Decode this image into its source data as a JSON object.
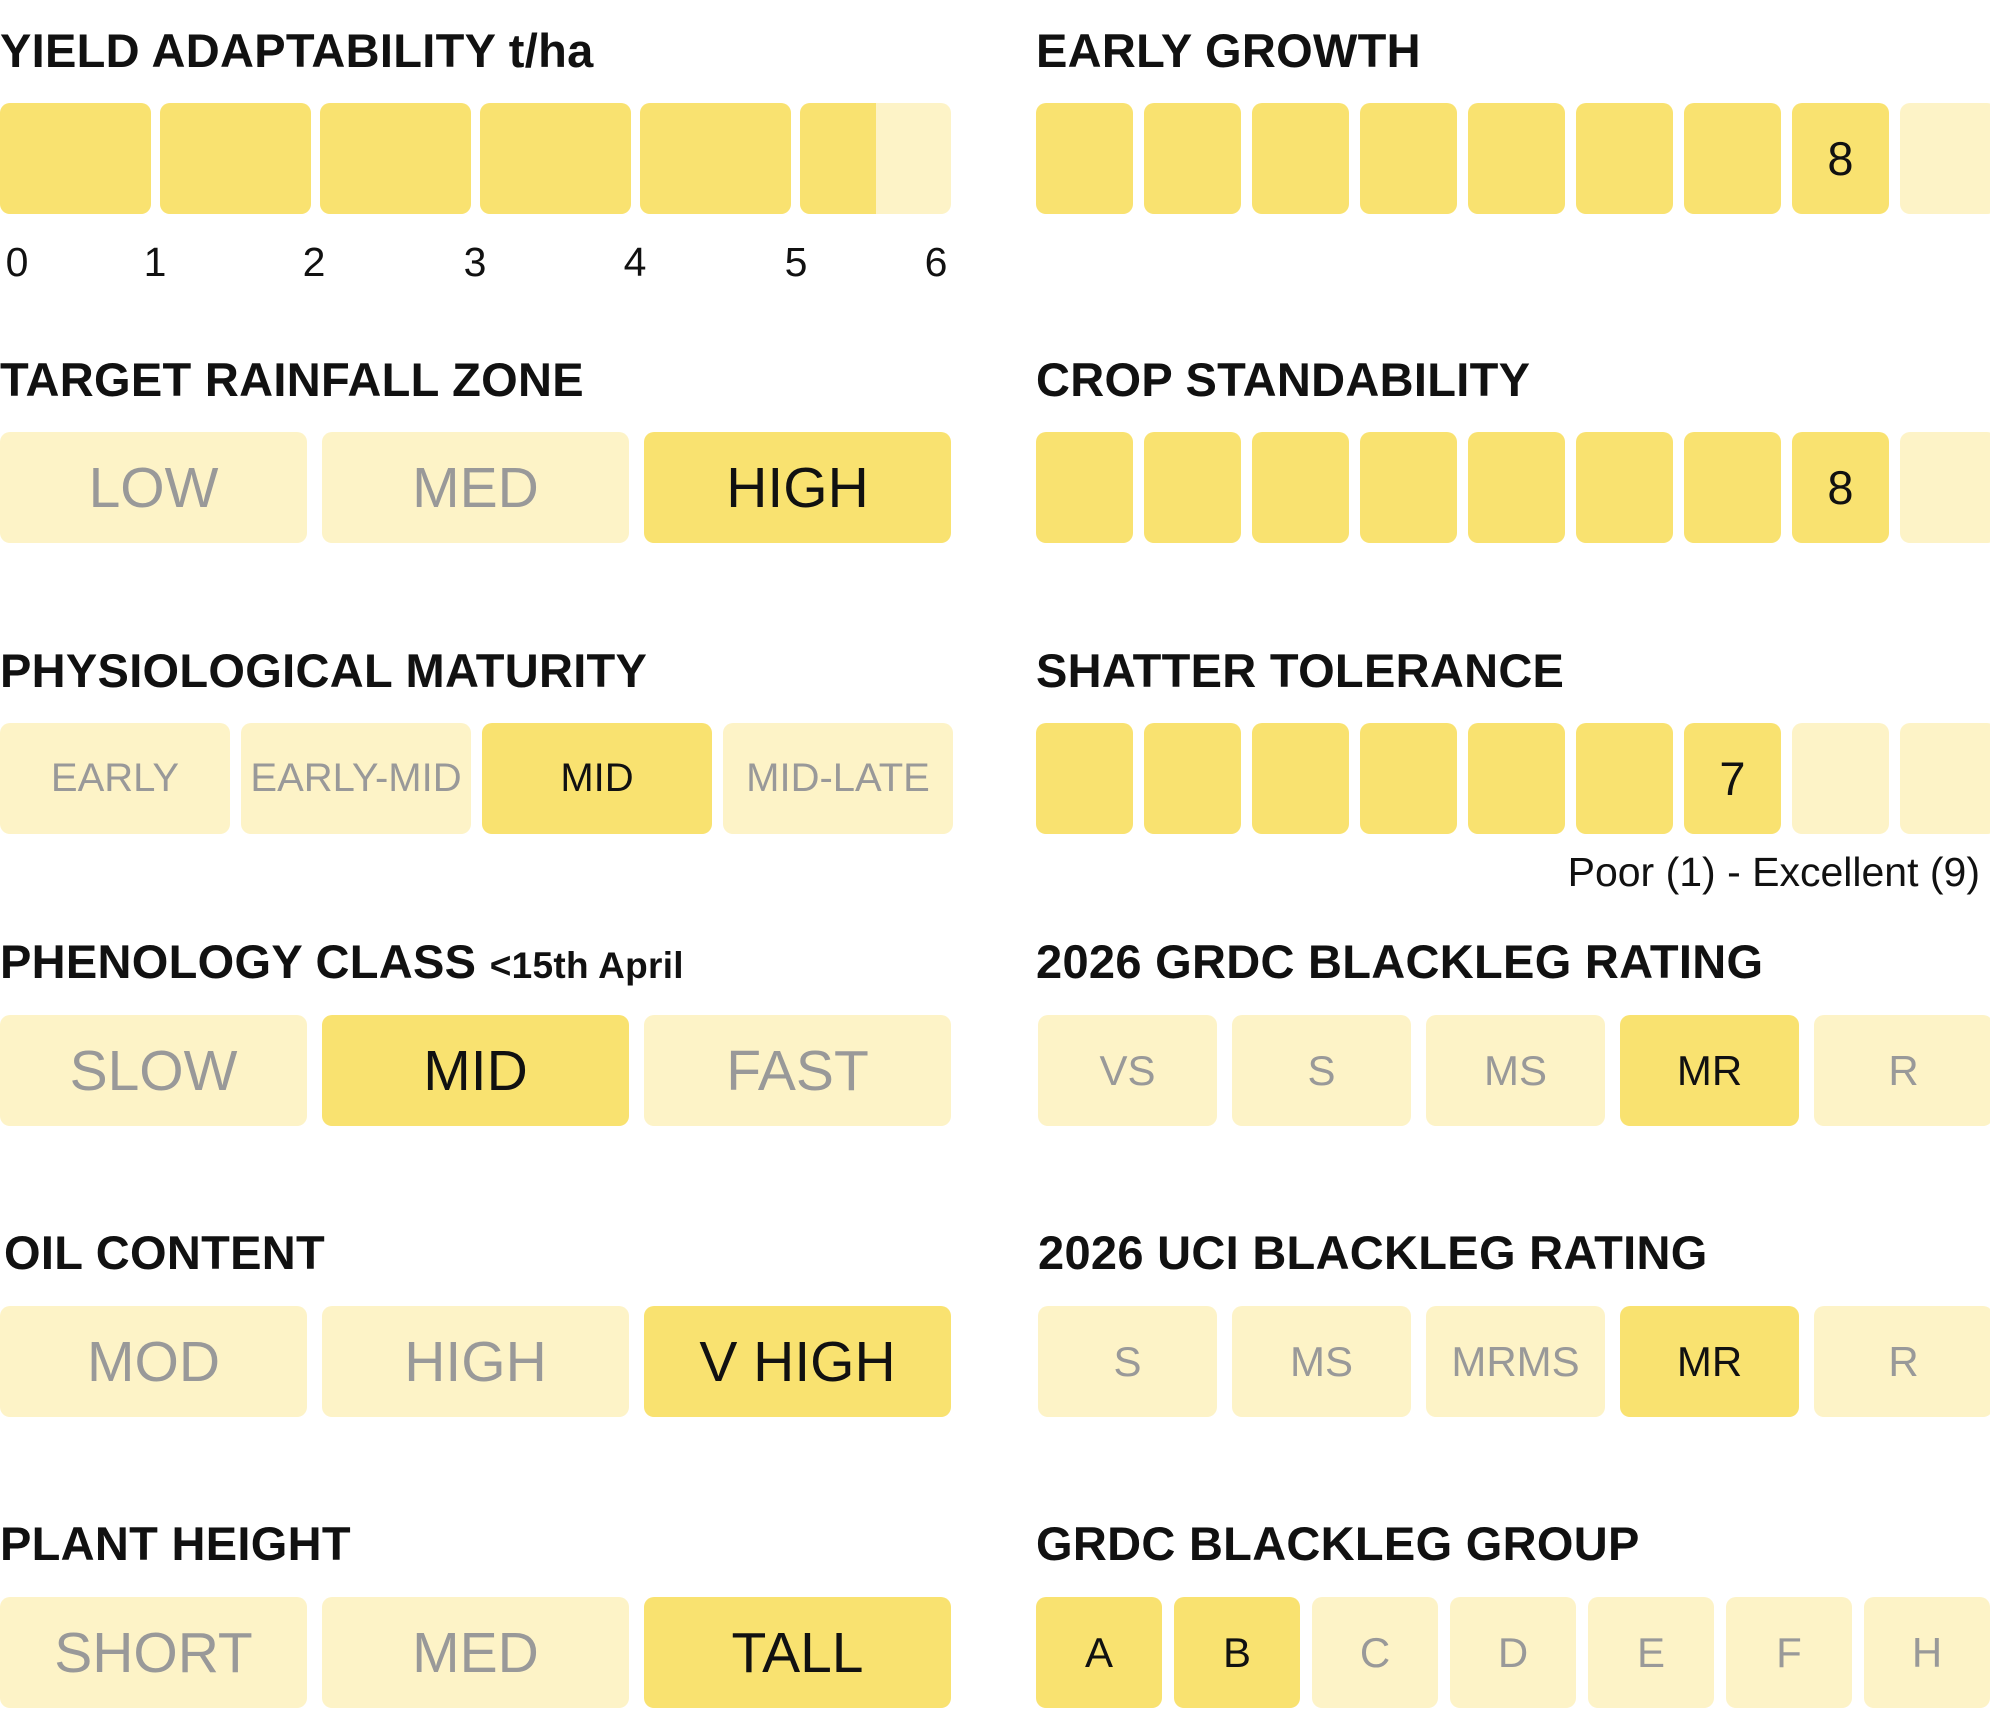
{
  "colors": {
    "active": "#f9e270",
    "inactive": "#fdf3c7",
    "muted_text": "#999999"
  },
  "yield": {
    "title": "YIELD ADAPTABILITY t/ha",
    "value": 5.5,
    "max": 6,
    "ticks": [
      "0",
      "1",
      "2",
      "3",
      "4",
      "5",
      "6"
    ]
  },
  "rainfall": {
    "title": "TARGET RAINFALL ZONE",
    "options": [
      "LOW",
      "MED",
      "HIGH"
    ],
    "selected": "HIGH"
  },
  "maturity": {
    "title": "PHYSIOLOGICAL MATURITY",
    "options": [
      "EARLY",
      "EARLY-MID",
      "MID",
      "MID-LATE"
    ],
    "selected": "MID"
  },
  "phenology": {
    "title": "PHENOLOGY CLASS",
    "subtitle": "<15th April",
    "options": [
      "SLOW",
      "MID",
      "FAST"
    ],
    "selected": "MID"
  },
  "oil": {
    "title": "OIL CONTENT",
    "options": [
      "MOD",
      "HIGH",
      "V HIGH"
    ],
    "selected": "V HIGH"
  },
  "height": {
    "title": "PLANT HEIGHT",
    "options": [
      "SHORT",
      "MED",
      "TALL"
    ],
    "selected": "TALL"
  },
  "early_growth": {
    "title": "EARLY GROWTH",
    "value": "8",
    "max": 9
  },
  "standability": {
    "title": "CROP STANDABILITY",
    "value": "8",
    "max": 9
  },
  "shatter": {
    "title": "SHATTER TOLERANCE",
    "value": "7",
    "max": 9,
    "scale_note": "Poor (1) - Excellent (9)"
  },
  "grdc_rating": {
    "title": "2026 GRDC BLACKLEG RATING",
    "options": [
      "VS",
      "S",
      "MS",
      "MR",
      "R"
    ],
    "selected": "MR"
  },
  "uci_rating": {
    "title": "2026 UCI BLACKLEG RATING",
    "options": [
      "S",
      "MS",
      "MRMS",
      "MR",
      "R"
    ],
    "selected": "MR"
  },
  "grdc_group": {
    "title": "GRDC BLACKLEG GROUP",
    "options": [
      "A",
      "B",
      "C",
      "D",
      "E",
      "F",
      "H"
    ],
    "selected": [
      "A",
      "B"
    ]
  }
}
